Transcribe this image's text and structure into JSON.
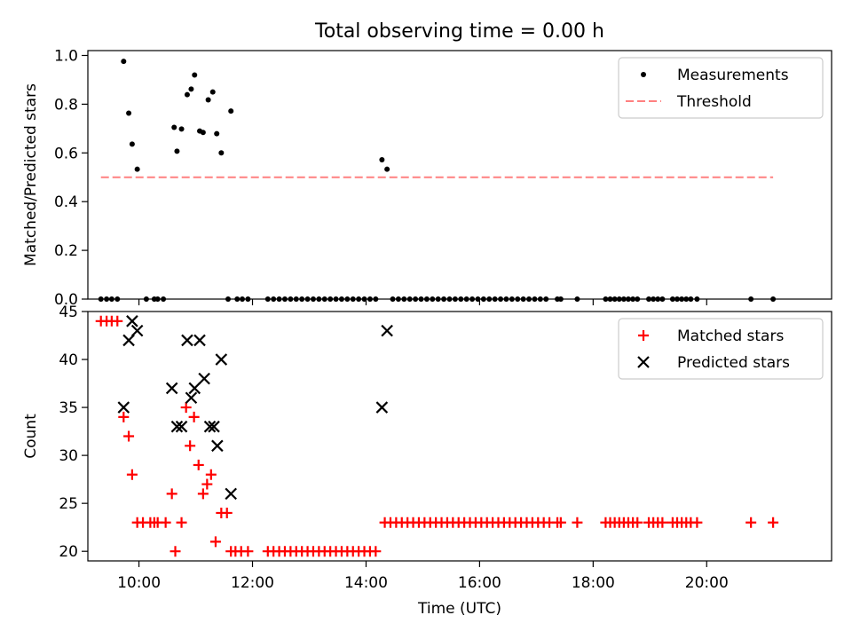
{
  "title": "Total observing time = 0.00 h",
  "colors": {
    "matched": "#ff0000",
    "predicted": "#000000",
    "measurement": "#000000",
    "threshold": "#ff8080"
  },
  "chart_data": [
    {
      "type": "scatter",
      "ylabel": "Matched/Predicted stars",
      "xlabel": "",
      "xlim": [
        9.1,
        22.2
      ],
      "ylim": [
        0,
        1.02
      ],
      "yticks": [
        "0.0",
        "0.2",
        "0.4",
        "0.6",
        "0.8",
        "1.0"
      ],
      "legend": {
        "position": "top-right",
        "entries": [
          "Measurements",
          "Threshold"
        ]
      },
      "threshold": {
        "name": "Threshold",
        "y": 0.5,
        "x": [
          9.33,
          21.17
        ]
      },
      "series": [
        {
          "name": "Measurements",
          "points": [
            [
              9.33,
              0
            ],
            [
              9.43,
              0
            ],
            [
              9.52,
              0
            ],
            [
              9.62,
              0
            ],
            [
              9.73,
              0.976
            ],
            [
              9.82,
              0.763
            ],
            [
              9.88,
              0.636
            ],
            [
              9.97,
              0.533
            ],
            [
              10.13,
              0
            ],
            [
              10.27,
              0
            ],
            [
              10.33,
              0
            ],
            [
              10.43,
              0
            ],
            [
              10.62,
              0.705
            ],
            [
              10.67,
              0.607
            ],
            [
              10.75,
              0.698
            ],
            [
              10.85,
              0.839
            ],
            [
              10.92,
              0.862
            ],
            [
              10.98,
              0.92
            ],
            [
              11.07,
              0.69
            ],
            [
              11.13,
              0.684
            ],
            [
              11.22,
              0.818
            ],
            [
              11.3,
              0.85
            ],
            [
              11.37,
              0.679
            ],
            [
              11.45,
              0.6
            ],
            [
              11.62,
              0.772
            ],
            [
              11.57,
              0
            ],
            [
              11.73,
              0
            ],
            [
              11.82,
              0
            ],
            [
              11.92,
              0
            ],
            [
              12.27,
              0
            ],
            [
              12.37,
              0
            ],
            [
              12.47,
              0
            ],
            [
              12.57,
              0
            ],
            [
              12.67,
              0
            ],
            [
              12.77,
              0
            ],
            [
              12.87,
              0
            ],
            [
              12.97,
              0
            ],
            [
              13.07,
              0
            ],
            [
              13.17,
              0
            ],
            [
              13.27,
              0
            ],
            [
              13.37,
              0
            ],
            [
              13.47,
              0
            ],
            [
              13.57,
              0
            ],
            [
              13.67,
              0
            ],
            [
              13.77,
              0
            ],
            [
              13.87,
              0
            ],
            [
              13.97,
              0
            ],
            [
              14.07,
              0
            ],
            [
              14.17,
              0
            ],
            [
              14.28,
              0.572
            ],
            [
              14.37,
              0.533
            ],
            [
              14.47,
              0
            ],
            [
              14.57,
              0
            ],
            [
              14.67,
              0
            ],
            [
              14.77,
              0
            ],
            [
              14.87,
              0
            ],
            [
              14.97,
              0
            ],
            [
              15.07,
              0
            ],
            [
              15.17,
              0
            ],
            [
              15.27,
              0
            ],
            [
              15.37,
              0
            ],
            [
              15.47,
              0
            ],
            [
              15.57,
              0
            ],
            [
              15.67,
              0
            ],
            [
              15.77,
              0
            ],
            [
              15.87,
              0
            ],
            [
              15.97,
              0
            ],
            [
              16.07,
              0
            ],
            [
              16.17,
              0
            ],
            [
              16.27,
              0
            ],
            [
              16.37,
              0
            ],
            [
              16.47,
              0
            ],
            [
              16.57,
              0
            ],
            [
              16.67,
              0
            ],
            [
              16.77,
              0
            ],
            [
              16.87,
              0
            ],
            [
              16.97,
              0
            ],
            [
              17.07,
              0
            ],
            [
              17.17,
              0
            ],
            [
              17.37,
              0
            ],
            [
              17.43,
              0
            ],
            [
              17.72,
              0
            ],
            [
              18.22,
              0
            ],
            [
              18.3,
              0
            ],
            [
              18.38,
              0
            ],
            [
              18.46,
              0
            ],
            [
              18.54,
              0
            ],
            [
              18.62,
              0
            ],
            [
              18.7,
              0
            ],
            [
              18.78,
              0
            ],
            [
              18.98,
              0
            ],
            [
              19.06,
              0
            ],
            [
              19.14,
              0
            ],
            [
              19.22,
              0
            ],
            [
              19.4,
              0
            ],
            [
              19.48,
              0
            ],
            [
              19.56,
              0
            ],
            [
              19.64,
              0
            ],
            [
              19.72,
              0
            ],
            [
              19.83,
              0
            ],
            [
              20.78,
              0
            ],
            [
              21.17,
              0
            ]
          ]
        }
      ]
    },
    {
      "type": "scatter",
      "ylabel": "Count",
      "xlabel": "Time (UTC)",
      "xlim": [
        9.1,
        22.2
      ],
      "ylim": [
        19,
        45
      ],
      "yticks": [
        "20",
        "25",
        "30",
        "35",
        "40",
        "45"
      ],
      "xticks": [
        {
          "value": 10,
          "label": "10:00"
        },
        {
          "value": 12,
          "label": "12:00"
        },
        {
          "value": 14,
          "label": "14:00"
        },
        {
          "value": 16,
          "label": "16:00"
        },
        {
          "value": 18,
          "label": "18:00"
        },
        {
          "value": 20,
          "label": "20:00"
        }
      ],
      "legend": {
        "position": "top-right",
        "entries": [
          "Matched stars",
          "Predicted stars"
        ]
      },
      "series": [
        {
          "name": "Matched stars",
          "marker": "plus",
          "points": [
            [
              9.33,
              44
            ],
            [
              9.43,
              44
            ],
            [
              9.52,
              44
            ],
            [
              9.62,
              44
            ],
            [
              9.73,
              34
            ],
            [
              9.82,
              32
            ],
            [
              9.88,
              28
            ],
            [
              9.97,
              23
            ],
            [
              10.07,
              23
            ],
            [
              10.2,
              23
            ],
            [
              10.27,
              23
            ],
            [
              10.33,
              23
            ],
            [
              10.47,
              23
            ],
            [
              10.58,
              26
            ],
            [
              10.64,
              20
            ],
            [
              10.75,
              23
            ],
            [
              10.83,
              35
            ],
            [
              10.9,
              31
            ],
            [
              10.97,
              34
            ],
            [
              11.05,
              29
            ],
            [
              11.13,
              26
            ],
            [
              11.2,
              27
            ],
            [
              11.27,
              28
            ],
            [
              11.35,
              21
            ],
            [
              11.45,
              24
            ],
            [
              11.55,
              24
            ],
            [
              11.62,
              20
            ],
            [
              11.7,
              20
            ],
            [
              11.8,
              20
            ],
            [
              11.92,
              20
            ],
            [
              12.27,
              20
            ],
            [
              12.37,
              20
            ],
            [
              12.47,
              20
            ],
            [
              12.57,
              20
            ],
            [
              12.67,
              20
            ],
            [
              12.77,
              20
            ],
            [
              12.87,
              20
            ],
            [
              12.97,
              20
            ],
            [
              13.07,
              20
            ],
            [
              13.17,
              20
            ],
            [
              13.27,
              20
            ],
            [
              13.37,
              20
            ],
            [
              13.47,
              20
            ],
            [
              13.57,
              20
            ],
            [
              13.67,
              20
            ],
            [
              13.77,
              20
            ],
            [
              13.87,
              20
            ],
            [
              13.97,
              20
            ],
            [
              14.07,
              20
            ],
            [
              14.17,
              20
            ],
            [
              14.33,
              23
            ],
            [
              14.43,
              23
            ],
            [
              14.53,
              23
            ],
            [
              14.63,
              23
            ],
            [
              14.73,
              23
            ],
            [
              14.83,
              23
            ],
            [
              14.93,
              23
            ],
            [
              15.03,
              23
            ],
            [
              15.13,
              23
            ],
            [
              15.23,
              23
            ],
            [
              15.33,
              23
            ],
            [
              15.43,
              23
            ],
            [
              15.53,
              23
            ],
            [
              15.63,
              23
            ],
            [
              15.73,
              23
            ],
            [
              15.83,
              23
            ],
            [
              15.93,
              23
            ],
            [
              16.03,
              23
            ],
            [
              16.13,
              23
            ],
            [
              16.23,
              23
            ],
            [
              16.33,
              23
            ],
            [
              16.43,
              23
            ],
            [
              16.53,
              23
            ],
            [
              16.63,
              23
            ],
            [
              16.73,
              23
            ],
            [
              16.83,
              23
            ],
            [
              16.93,
              23
            ],
            [
              17.03,
              23
            ],
            [
              17.13,
              23
            ],
            [
              17.23,
              23
            ],
            [
              17.37,
              23
            ],
            [
              17.43,
              23
            ],
            [
              17.72,
              23
            ],
            [
              18.22,
              23
            ],
            [
              18.3,
              23
            ],
            [
              18.38,
              23
            ],
            [
              18.46,
              23
            ],
            [
              18.54,
              23
            ],
            [
              18.62,
              23
            ],
            [
              18.7,
              23
            ],
            [
              18.78,
              23
            ],
            [
              18.98,
              23
            ],
            [
              19.06,
              23
            ],
            [
              19.14,
              23
            ],
            [
              19.22,
              23
            ],
            [
              19.4,
              23
            ],
            [
              19.48,
              23
            ],
            [
              19.56,
              23
            ],
            [
              19.64,
              23
            ],
            [
              19.72,
              23
            ],
            [
              19.83,
              23
            ],
            [
              20.78,
              23
            ],
            [
              21.17,
              23
            ]
          ]
        },
        {
          "name": "Predicted stars",
          "marker": "x",
          "points": [
            [
              9.73,
              35
            ],
            [
              9.82,
              42
            ],
            [
              9.88,
              44
            ],
            [
              9.97,
              43
            ],
            [
              10.58,
              37
            ],
            [
              10.67,
              33
            ],
            [
              10.75,
              33
            ],
            [
              10.85,
              42
            ],
            [
              10.92,
              36
            ],
            [
              10.98,
              37
            ],
            [
              11.07,
              42
            ],
            [
              11.15,
              38
            ],
            [
              11.25,
              33
            ],
            [
              11.32,
              33
            ],
            [
              11.38,
              31
            ],
            [
              11.45,
              40
            ],
            [
              11.62,
              26
            ],
            [
              14.28,
              35
            ],
            [
              14.37,
              43
            ]
          ]
        }
      ]
    }
  ]
}
